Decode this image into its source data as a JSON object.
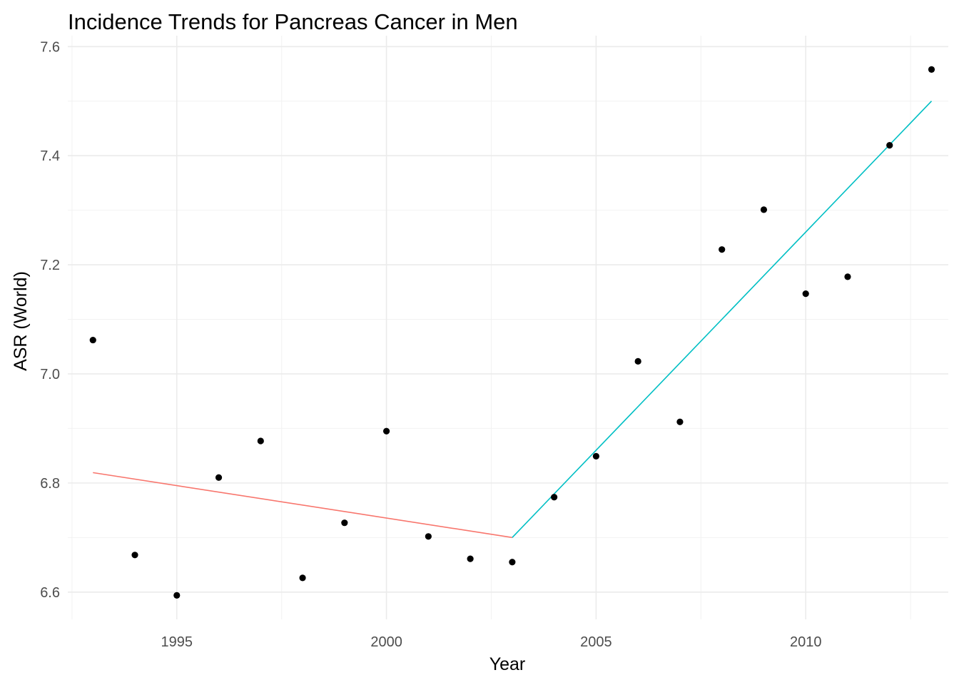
{
  "chart_data": {
    "type": "scatter",
    "title": "Incidence Trends for Pancreas Cancer in Men",
    "xlabel": "Year",
    "ylabel": "ASR (World)",
    "xlim": [
      1992.4,
      2013.4
    ],
    "ylim": [
      6.55,
      7.62
    ],
    "x_ticks": [
      1995,
      2000,
      2005,
      2010
    ],
    "x_minor_ticks": [
      1992.5,
      1997.5,
      2002.5,
      2007.5,
      2012.5
    ],
    "y_ticks": [
      6.6,
      6.8,
      7.0,
      7.2,
      7.4,
      7.6
    ],
    "y_minor_ticks": [
      6.7,
      6.9,
      7.1,
      7.3,
      7.5
    ],
    "grid": true,
    "legend": "none",
    "points": {
      "color": "#000000",
      "x": [
        1993,
        1994,
        1995,
        1996,
        1997,
        1998,
        1999,
        2000,
        2001,
        2002,
        2003,
        2004,
        2005,
        2006,
        2007,
        2008,
        2009,
        2010,
        2011,
        2012,
        2013
      ],
      "y": [
        7.062,
        6.668,
        6.594,
        6.81,
        6.877,
        6.626,
        6.727,
        6.895,
        6.702,
        6.661,
        6.655,
        6.774,
        6.849,
        7.023,
        6.912,
        7.228,
        7.301,
        7.147,
        7.178,
        7.419,
        7.558
      ]
    },
    "lines": [
      {
        "color": "#F8766D",
        "x": [
          1993,
          2003
        ],
        "y": [
          6.819,
          6.7
        ]
      },
      {
        "color": "#00BFC4",
        "x": [
          2003,
          2013
        ],
        "y": [
          6.7,
          7.5
        ]
      }
    ]
  }
}
